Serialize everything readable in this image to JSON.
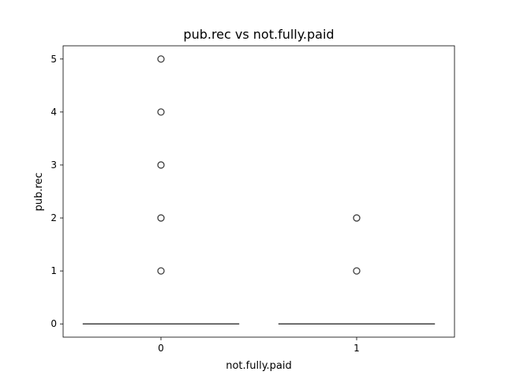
{
  "chart_data": {
    "type": "box",
    "title": "pub.rec vs not.fully.paid",
    "xlabel": "not.fully.paid",
    "ylabel": "pub.rec",
    "categories": [
      "0",
      "1"
    ],
    "yticks": [
      "0",
      "1",
      "2",
      "3",
      "4",
      "5"
    ],
    "ylim": [
      -0.25,
      5.25
    ],
    "boxes": [
      {
        "category": "0",
        "min": 0,
        "q1": 0,
        "median": 0,
        "q3": 0,
        "max": 0,
        "outliers": [
          1,
          2,
          3,
          4,
          5
        ]
      },
      {
        "category": "1",
        "min": 0,
        "q1": 0,
        "median": 0,
        "q3": 0,
        "max": 0,
        "outliers": [
          1,
          2
        ]
      }
    ],
    "grid": false,
    "colors": {
      "box_line": "#3f3f3f",
      "outlier_edge": "#3f3f3f",
      "axes": "#000000"
    }
  }
}
